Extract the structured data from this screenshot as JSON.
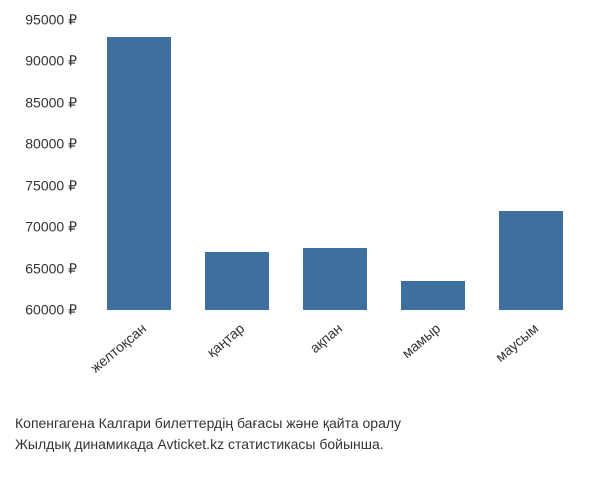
{
  "chart": {
    "type": "bar",
    "categories": [
      "желтоқсан",
      "қаңтар",
      "ақпан",
      "мамыр",
      "маусым"
    ],
    "values": [
      93000,
      67000,
      67500,
      63500,
      72000
    ],
    "bar_color": "#3f6f9f",
    "ylim": [
      60000,
      95000
    ],
    "ytick_step": 5000,
    "currency_symbol": "₽",
    "background_color": "#ffffff",
    "label_fontsize": 14,
    "bar_width_ratio": 0.65,
    "x_label_rotation": -40
  },
  "caption": {
    "line1": "Копенгагена Калгари билеттердің бағасы және қайта оралу",
    "line2": "Жылдық динамикада Avticket.kz статистикасы бойынша."
  }
}
